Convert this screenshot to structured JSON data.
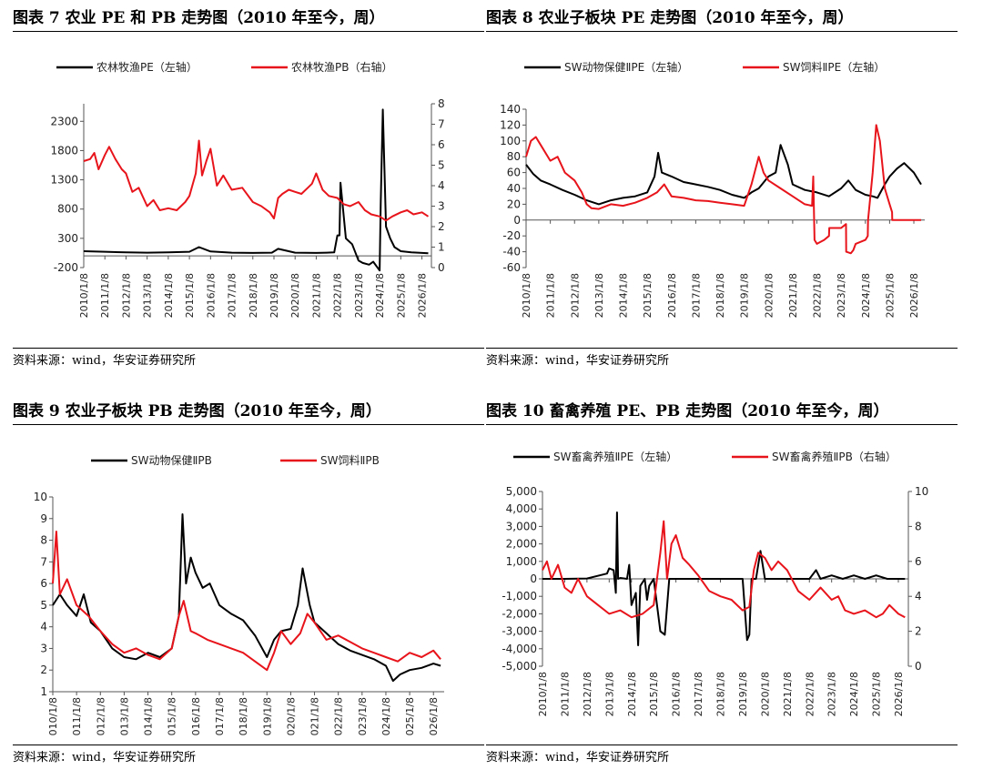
{
  "panels": [
    {
      "title": "图表 7 农业 PE 和 PB 走势图（2010 年至今，周）",
      "source": "资料来源：wind，华安证券研究所"
    },
    {
      "title": "图表 8 农业子板块 PE 走势图（2010 年至今，周）",
      "source": "资料来源：wind，华安证券研究所"
    },
    {
      "title": "图表 9 农业子板块 PB 走势图（2010 年至今，周）",
      "source": "资料来源：wind，华安证券研究所"
    },
    {
      "title": "图表 10 畜禽养殖 PE、PB 走势图（2010 年至今，周）",
      "source": "资料来源：wind，华安证券研究所"
    }
  ],
  "chart_data": [
    {
      "type": "line",
      "title": "图表 7 农业 PE 和 PB 走势图（2010 年至今，周）",
      "x": [
        "2010/1/8",
        "2011/1/8",
        "2012/1/8",
        "2013/1/8",
        "2014/1/8",
        "2015/1/8",
        "2016/1/8",
        "2017/1/8",
        "2018/1/8",
        "2019/1/8",
        "2020/1/8",
        "2021/1/8",
        "2022/1/8",
        "2023/1/8",
        "2024/1/8",
        "2025/1/8",
        "2026/1/8"
      ],
      "ylim": [
        -200,
        2600
      ],
      "yticks": [
        "-200",
        "300",
        "800",
        "1300",
        "1800",
        "2300"
      ],
      "y2lim": [
        0,
        8
      ],
      "y2ticks": [
        "0",
        "1",
        "2",
        "3",
        "4",
        "5",
        "6",
        "7",
        "8"
      ],
      "series": [
        {
          "name": "农林牧渔PE（左轴）",
          "axis": "left",
          "color": "#000000",
          "x": [
            2010.0,
            2011.0,
            2012.0,
            2013.0,
            2014.0,
            2015.0,
            2015.45,
            2016.0,
            2017.0,
            2018.0,
            2018.9,
            2019.2,
            2020.0,
            2021.0,
            2021.5,
            2021.85,
            2022.0,
            2022.1,
            2022.15,
            2022.4,
            2022.7,
            2023.0,
            2023.2,
            2023.5,
            2023.7,
            2024.0,
            2024.05,
            2024.15,
            2024.3,
            2024.5,
            2024.7,
            2025.0,
            2025.5,
            2026.0,
            2026.3
          ],
          "y": [
            80,
            70,
            60,
            55,
            60,
            70,
            150,
            75,
            55,
            50,
            55,
            120,
            55,
            50,
            55,
            60,
            350,
            350,
            1250,
            300,
            200,
            -80,
            -120,
            -150,
            -100,
            -250,
            900,
            2500,
            500,
            300,
            150,
            80,
            60,
            50,
            45
          ]
        },
        {
          "name": "农林牧渔PB（右轴）",
          "axis": "right",
          "color": "#e8141b",
          "x": [
            2010.0,
            2010.3,
            2010.5,
            2010.7,
            2011.0,
            2011.2,
            2011.5,
            2011.8,
            2012.0,
            2012.3,
            2012.6,
            2013.0,
            2013.3,
            2013.6,
            2014.0,
            2014.4,
            2014.8,
            2015.0,
            2015.3,
            2015.45,
            2015.6,
            2015.8,
            2016.0,
            2016.3,
            2016.6,
            2017.0,
            2017.5,
            2018.0,
            2018.4,
            2018.8,
            2019.0,
            2019.2,
            2019.4,
            2019.7,
            2020.0,
            2020.3,
            2020.6,
            2020.8,
            2021.0,
            2021.3,
            2021.6,
            2022.0,
            2022.3,
            2022.6,
            2023.0,
            2023.3,
            2023.6,
            2024.0,
            2024.3,
            2024.6,
            2025.0,
            2025.3,
            2025.6,
            2026.0,
            2026.3
          ],
          "y": [
            5.2,
            5.3,
            5.6,
            4.8,
            5.5,
            5.9,
            5.3,
            4.8,
            4.6,
            3.7,
            3.9,
            3.0,
            3.3,
            2.8,
            2.9,
            2.8,
            3.2,
            3.5,
            4.6,
            6.2,
            4.5,
            5.2,
            5.8,
            4.0,
            4.5,
            3.8,
            3.9,
            3.2,
            3.0,
            2.7,
            2.4,
            3.4,
            3.6,
            3.8,
            3.7,
            3.6,
            3.9,
            4.1,
            4.6,
            3.8,
            3.5,
            3.4,
            3.1,
            3.0,
            3.2,
            2.8,
            2.6,
            2.5,
            2.3,
            2.5,
            2.7,
            2.8,
            2.6,
            2.7,
            2.5
          ]
        }
      ]
    },
    {
      "type": "line",
      "title": "图表 8 农业子板块 PE 走势图（2010 年至今，周）",
      "x": [
        "2010/1/8",
        "2011/1/8",
        "2012/1/8",
        "2013/1/8",
        "2014/1/8",
        "2015/1/8",
        "2016/1/8",
        "2017/1/8",
        "2018/1/8",
        "2019/1/8",
        "2020/1/8",
        "2021/1/8",
        "2022/1/8",
        "2023/1/8",
        "2024/1/8",
        "2025/1/8",
        "2026/1/8"
      ],
      "ylim": [
        -60,
        140
      ],
      "yticks": [
        "-60",
        "-40",
        "-20",
        "0",
        "20",
        "40",
        "60",
        "80",
        "100",
        "120",
        "140"
      ],
      "series": [
        {
          "name": "SW动物保健ⅡPE（左轴）",
          "axis": "left",
          "color": "#000000",
          "x": [
            2010.0,
            2010.3,
            2010.6,
            2011.0,
            2011.5,
            2012.0,
            2012.5,
            2013.0,
            2013.5,
            2014.0,
            2014.5,
            2015.0,
            2015.3,
            2015.45,
            2015.6,
            2016.0,
            2016.5,
            2017.0,
            2017.5,
            2018.0,
            2018.5,
            2019.0,
            2019.3,
            2019.6,
            2020.0,
            2020.3,
            2020.5,
            2020.8,
            2021.0,
            2021.5,
            2022.0,
            2022.5,
            2023.0,
            2023.3,
            2023.6,
            2024.0,
            2024.3,
            2024.5,
            2024.8,
            2025.0,
            2025.3,
            2025.6,
            2026.0,
            2026.3
          ],
          "y": [
            70,
            58,
            50,
            45,
            38,
            32,
            25,
            20,
            25,
            28,
            30,
            35,
            55,
            85,
            60,
            55,
            48,
            45,
            42,
            38,
            32,
            28,
            35,
            40,
            55,
            60,
            95,
            70,
            45,
            38,
            35,
            30,
            40,
            50,
            38,
            32,
            30,
            28,
            45,
            55,
            65,
            72,
            60,
            45
          ]
        },
        {
          "name": "SW饲料ⅡPE（左轴）",
          "axis": "left",
          "color": "#e8141b",
          "x": [
            2010.0,
            2010.2,
            2010.4,
            2010.6,
            2011.0,
            2011.3,
            2011.6,
            2012.0,
            2012.3,
            2012.5,
            2012.7,
            2013.0,
            2013.5,
            2014.0,
            2014.5,
            2015.0,
            2015.4,
            2015.7,
            2016.0,
            2016.5,
            2017.0,
            2017.5,
            2018.0,
            2018.5,
            2019.0,
            2019.3,
            2019.6,
            2019.8,
            2020.0,
            2020.5,
            2021.0,
            2021.5,
            2021.8,
            2021.85,
            2021.9,
            2022.0,
            2022.3,
            2022.5,
            2022.51,
            2023.0,
            2023.2,
            2023.21,
            2023.4,
            2023.5,
            2023.6,
            2024.0,
            2024.1,
            2024.11,
            2024.3,
            2024.45,
            2024.6,
            2024.8,
            2025.0,
            2025.1,
            2025.11,
            2026.0,
            2026.3
          ],
          "y": [
            80,
            100,
            105,
            95,
            75,
            80,
            60,
            50,
            35,
            20,
            15,
            14,
            20,
            18,
            22,
            28,
            35,
            45,
            30,
            28,
            25,
            24,
            22,
            20,
            18,
            45,
            80,
            60,
            50,
            40,
            30,
            20,
            18,
            55,
            -25,
            -30,
            -25,
            -20,
            -10,
            -10,
            -5,
            -40,
            -42,
            -38,
            -30,
            -25,
            -20,
            0,
            60,
            120,
            100,
            40,
            20,
            10,
            0,
            0,
            0
          ]
        }
      ]
    },
    {
      "type": "line",
      "title": "图表 9 农业子板块 PB 走势图（2010 年至今，周）",
      "x": [
        "2010/1/8",
        "2011/1/8",
        "2012/1/8",
        "2013/1/8",
        "2014/1/8",
        "2015/1/8",
        "2016/1/8",
        "2017/1/8",
        "2018/1/8",
        "2019/1/8",
        "2020/1/8",
        "2021/1/8",
        "2022/1/8",
        "2023/1/8",
        "2024/1/8",
        "2025/1/8",
        "2026/1/8"
      ],
      "ylim": [
        1,
        10
      ],
      "yticks": [
        "1",
        "2",
        "3",
        "4",
        "5",
        "6",
        "7",
        "8",
        "9",
        "10"
      ],
      "series": [
        {
          "name": "SW动物保健ⅡPB",
          "axis": "left",
          "color": "#000000",
          "x": [
            2010.0,
            2010.3,
            2010.6,
            2011.0,
            2011.3,
            2011.6,
            2012.0,
            2012.5,
            2013.0,
            2013.5,
            2014.0,
            2014.5,
            2015.0,
            2015.3,
            2015.45,
            2015.6,
            2015.8,
            2016.0,
            2016.3,
            2016.6,
            2017.0,
            2017.5,
            2018.0,
            2018.5,
            2019.0,
            2019.3,
            2019.6,
            2020.0,
            2020.3,
            2020.5,
            2020.8,
            2021.0,
            2021.5,
            2022.0,
            2022.5,
            2023.0,
            2023.5,
            2024.0,
            2024.3,
            2024.6,
            2025.0,
            2025.5,
            2026.0,
            2026.3
          ],
          "y": [
            5.0,
            5.5,
            5.0,
            4.5,
            5.5,
            4.2,
            3.8,
            3.0,
            2.6,
            2.5,
            2.8,
            2.6,
            3.0,
            4.5,
            9.2,
            6.0,
            7.2,
            6.5,
            5.8,
            6.0,
            5.0,
            4.6,
            4.3,
            3.6,
            2.6,
            3.4,
            3.8,
            3.9,
            5.0,
            6.7,
            5.0,
            4.2,
            3.7,
            3.2,
            2.9,
            2.7,
            2.5,
            2.2,
            1.5,
            1.8,
            2.0,
            2.1,
            2.3,
            2.2
          ]
        },
        {
          "name": "SW饲料ⅡPB",
          "axis": "left",
          "color": "#e8141b",
          "x": [
            2010.0,
            2010.15,
            2010.3,
            2010.6,
            2011.0,
            2011.5,
            2012.0,
            2012.5,
            2013.0,
            2013.5,
            2014.0,
            2014.5,
            2015.0,
            2015.3,
            2015.5,
            2015.8,
            2016.0,
            2016.5,
            2017.0,
            2017.5,
            2018.0,
            2018.5,
            2019.0,
            2019.3,
            2019.6,
            2020.0,
            2020.4,
            2020.7,
            2021.0,
            2021.5,
            2022.0,
            2022.5,
            2023.0,
            2023.5,
            2024.0,
            2024.5,
            2025.0,
            2025.5,
            2026.0,
            2026.3
          ],
          "y": [
            6.0,
            8.4,
            5.5,
            6.2,
            5.0,
            4.5,
            3.8,
            3.2,
            2.8,
            3.0,
            2.7,
            2.5,
            3.0,
            4.5,
            5.2,
            3.8,
            3.7,
            3.4,
            3.2,
            3.0,
            2.8,
            2.4,
            2.0,
            2.8,
            3.8,
            3.2,
            3.7,
            4.6,
            4.2,
            3.4,
            3.6,
            3.3,
            3.0,
            2.8,
            2.6,
            2.4,
            2.8,
            2.6,
            2.9,
            2.5
          ]
        }
      ]
    },
    {
      "type": "line",
      "title": "图表 10 畜禽养殖 PE、PB 走势图（2010 年至今，周）",
      "x": [
        "2010/1/8",
        "2011/1/8",
        "2012/1/8",
        "2013/1/8",
        "2014/1/8",
        "2015/1/8",
        "2016/1/8",
        "2017/1/8",
        "2018/1/8",
        "2019/1/8",
        "2020/1/8",
        "2021/1/8",
        "2022/1/8",
        "2023/1/8",
        "2024/1/8",
        "2025/1/8",
        "2026/1/8"
      ],
      "ylim": [
        -5000,
        5000
      ],
      "yticks": [
        "-5,000",
        "-4,000",
        "-3,000",
        "-2,000",
        "-1,000",
        "0",
        "1,000",
        "2,000",
        "3,000",
        "4,000",
        "5,000"
      ],
      "y2lim": [
        0,
        10
      ],
      "y2ticks": [
        "0",
        "2",
        "4",
        "6",
        "8",
        "10"
      ],
      "series": [
        {
          "name": "SW畜禽养殖ⅡPE（左轴）",
          "axis": "left",
          "color": "#000000",
          "x": [
            2010.0,
            2011.0,
            2012.0,
            2012.9,
            2013.0,
            2013.2,
            2013.3,
            2013.35,
            2013.4,
            2013.5,
            2013.8,
            2013.9,
            2014.0,
            2014.2,
            2014.3,
            2014.4,
            2014.6,
            2014.7,
            2014.8,
            2015.0,
            2015.3,
            2015.5,
            2015.7,
            2016.0,
            2016.5,
            2017.0,
            2018.0,
            2019.0,
            2019.2,
            2019.3,
            2019.4,
            2019.6,
            2019.8,
            2020.0,
            2020.5,
            2021.0,
            2022.0,
            2022.3,
            2022.5,
            2023.0,
            2023.5,
            2024.0,
            2024.5,
            2025.0,
            2025.5,
            2026.0,
            2026.3
          ],
          "y": [
            0,
            0,
            20,
            300,
            600,
            500,
            -800,
            3800,
            0,
            50,
            0,
            800,
            -1500,
            -800,
            -3800,
            -400,
            0,
            -1200,
            -400,
            0,
            -3000,
            -3200,
            0,
            0,
            0,
            0,
            0,
            0,
            -3500,
            -3200,
            0,
            0,
            1600,
            0,
            0,
            0,
            0,
            500,
            0,
            200,
            0,
            200,
            0,
            200,
            0,
            0,
            0
          ]
        },
        {
          "name": "SW畜禽养殖ⅡPB（右轴）",
          "axis": "right",
          "color": "#e8141b",
          "x": [
            2010.0,
            2010.2,
            2010.4,
            2010.7,
            2011.0,
            2011.3,
            2011.6,
            2012.0,
            2012.5,
            2013.0,
            2013.5,
            2014.0,
            2014.5,
            2015.0,
            2015.3,
            2015.45,
            2015.6,
            2015.8,
            2016.0,
            2016.3,
            2016.6,
            2017.0,
            2017.5,
            2018.0,
            2018.5,
            2019.0,
            2019.3,
            2019.5,
            2019.7,
            2020.0,
            2020.3,
            2020.6,
            2021.0,
            2021.5,
            2022.0,
            2022.5,
            2023.0,
            2023.3,
            2023.6,
            2024.0,
            2024.5,
            2025.0,
            2025.3,
            2025.6,
            2026.0,
            2026.3
          ],
          "y": [
            5.5,
            6.0,
            5.0,
            5.8,
            4.5,
            4.2,
            5.0,
            4.0,
            3.5,
            3.0,
            3.2,
            2.8,
            3.0,
            3.5,
            6.5,
            8.3,
            5.0,
            7.0,
            7.5,
            6.2,
            5.8,
            5.2,
            4.3,
            4.0,
            3.8,
            3.2,
            3.4,
            5.5,
            6.5,
            6.2,
            5.5,
            6.0,
            5.5,
            4.3,
            3.8,
            4.5,
            3.8,
            4.0,
            3.2,
            3.0,
            3.2,
            2.8,
            3.0,
            3.5,
            3.0,
            2.8
          ]
        }
      ]
    }
  ]
}
